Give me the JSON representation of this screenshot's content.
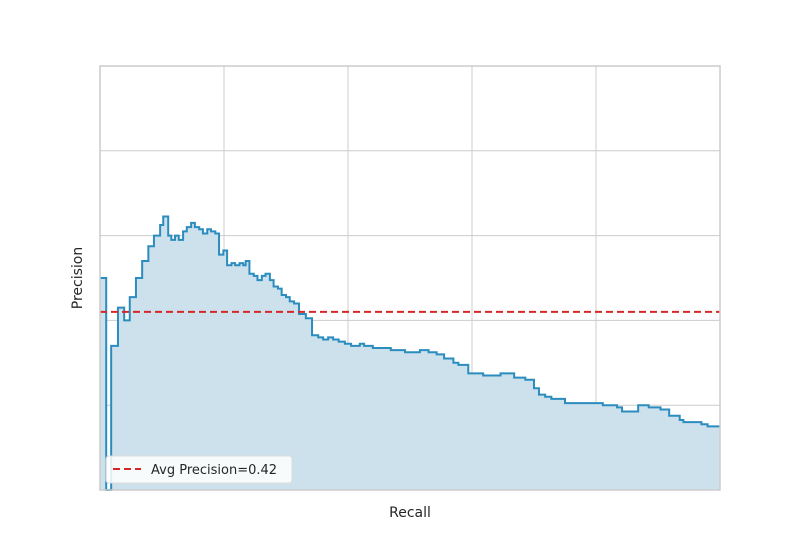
{
  "chart_data": {
    "type": "line",
    "title": "",
    "xlabel": "Recall",
    "ylabel": "Precision",
    "xlim": [
      0,
      1
    ],
    "ylim": [
      0,
      1
    ],
    "grid": true,
    "legend_position": "lower-left",
    "colors": {
      "curve": "#2b8cbe",
      "fill": "#cce1ec",
      "avg_line": "#d62728",
      "grid": "#cccccc",
      "frame": "#cccccc"
    },
    "series": [
      {
        "step": "post",
        "x": [
          0.0,
          0.01,
          0.018,
          0.029,
          0.039,
          0.048,
          0.058,
          0.068,
          0.078,
          0.087,
          0.097,
          0.102,
          0.11,
          0.115,
          0.121,
          0.127,
          0.134,
          0.14,
          0.147,
          0.153,
          0.16,
          0.166,
          0.173,
          0.179,
          0.186,
          0.192,
          0.199,
          0.205,
          0.212,
          0.218,
          0.225,
          0.231,
          0.235,
          0.241,
          0.248,
          0.254,
          0.261,
          0.267,
          0.274,
          0.28,
          0.287,
          0.293,
          0.3,
          0.306,
          0.313,
          0.321,
          0.332,
          0.342,
          0.352,
          0.36,
          0.368,
          0.376,
          0.385,
          0.395,
          0.405,
          0.419,
          0.426,
          0.44,
          0.469,
          0.492,
          0.505,
          0.516,
          0.53,
          0.543,
          0.555,
          0.57,
          0.578,
          0.594,
          0.618,
          0.646,
          0.668,
          0.686,
          0.7,
          0.708,
          0.718,
          0.728,
          0.75,
          0.788,
          0.811,
          0.834,
          0.842,
          0.868,
          0.885,
          0.904,
          0.918,
          0.935,
          0.941,
          0.97,
          0.98,
          1.0
        ],
        "y": [
          0.5,
          0.0,
          0.34,
          0.43,
          0.4,
          0.455,
          0.5,
          0.54,
          0.575,
          0.6,
          0.625,
          0.645,
          0.6,
          0.59,
          0.6,
          0.59,
          0.61,
          0.62,
          0.63,
          0.62,
          0.615,
          0.605,
          0.615,
          0.61,
          0.605,
          0.555,
          0.565,
          0.53,
          0.535,
          0.53,
          0.535,
          0.53,
          0.54,
          0.51,
          0.505,
          0.495,
          0.505,
          0.51,
          0.495,
          0.48,
          0.475,
          0.46,
          0.455,
          0.445,
          0.44,
          0.415,
          0.405,
          0.365,
          0.36,
          0.355,
          0.36,
          0.355,
          0.35,
          0.345,
          0.34,
          0.345,
          0.34,
          0.335,
          0.33,
          0.325,
          0.325,
          0.33,
          0.325,
          0.32,
          0.31,
          0.3,
          0.295,
          0.275,
          0.27,
          0.275,
          0.265,
          0.26,
          0.24,
          0.225,
          0.22,
          0.215,
          0.205,
          0.205,
          0.2,
          0.195,
          0.185,
          0.2,
          0.195,
          0.19,
          0.175,
          0.165,
          0.16,
          0.155,
          0.15,
          0.15
        ]
      }
    ],
    "avg_precision": 0.42,
    "legend": [
      {
        "label": "Avg Precision=0.42",
        "style": "dashed",
        "color": "#d62728"
      }
    ]
  }
}
